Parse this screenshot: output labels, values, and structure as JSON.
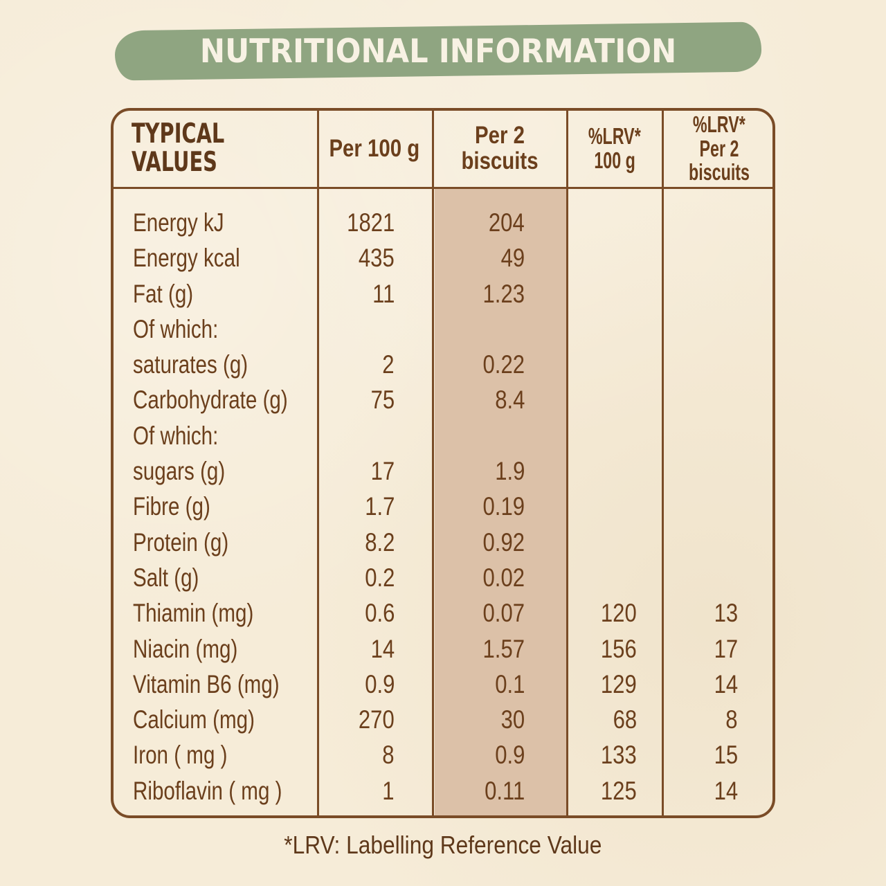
{
  "title": "NUTRITIONAL INFORMATION",
  "table": {
    "headers": {
      "typical_line1": "TYPICAL",
      "typical_line2": "VALUES",
      "per100": "Per 100 g",
      "per2": "Per 2 biscuits",
      "lrv100_line1": "%LRV*",
      "lrv100_line2": "100 g",
      "lrv2_line1": "%LRV*",
      "lrv2_line2": "Per 2 biscuits"
    },
    "rows": [
      {
        "label": "Energy kJ",
        "per100": "1821",
        "per2": "204",
        "lrv100": "",
        "lrv2": ""
      },
      {
        "label": "Energy kcal",
        "per100": "435",
        "per2": "49",
        "lrv100": "",
        "lrv2": ""
      },
      {
        "label": "Fat (g)",
        "per100": "11",
        "per2": "1.23",
        "lrv100": "",
        "lrv2": ""
      },
      {
        "label": "Of which:",
        "per100": "",
        "per2": "",
        "lrv100": "",
        "lrv2": ""
      },
      {
        "label": "saturates (g)",
        "per100": "2",
        "per2": "0.22",
        "lrv100": "",
        "lrv2": ""
      },
      {
        "label": "Carbohydrate (g)",
        "per100": "75",
        "per2": "8.4",
        "lrv100": "",
        "lrv2": ""
      },
      {
        "label": "Of which:",
        "per100": "",
        "per2": "",
        "lrv100": "",
        "lrv2": ""
      },
      {
        "label": "sugars (g)",
        "per100": "17",
        "per2": "1.9",
        "lrv100": "",
        "lrv2": ""
      },
      {
        "label": "Fibre (g)",
        "per100": "1.7",
        "per2": "0.19",
        "lrv100": "",
        "lrv2": ""
      },
      {
        "label": "Protein (g)",
        "per100": "8.2",
        "per2": "0.92",
        "lrv100": "",
        "lrv2": ""
      },
      {
        "label": "Salt (g)",
        "per100": "0.2",
        "per2": "0.02",
        "lrv100": "",
        "lrv2": ""
      },
      {
        "label": "Thiamin (mg)",
        "per100": "0.6",
        "per2": "0.07",
        "lrv100": "120",
        "lrv2": "13"
      },
      {
        "label": "Niacin (mg)",
        "per100": "14",
        "per2": "1.57",
        "lrv100": "156",
        "lrv2": "17"
      },
      {
        "label": "Vitamin B6 (mg)",
        "per100": "0.9",
        "per2": "0.1",
        "lrv100": "129",
        "lrv2": "14"
      },
      {
        "label": "Calcium (mg)",
        "per100": "270",
        "per2": "30",
        "lrv100": "68",
        "lrv2": "8"
      },
      {
        "label": "Iron ( mg )",
        "per100": "8",
        "per2": "0.9",
        "lrv100": "133",
        "lrv2": "15"
      },
      {
        "label": "Riboflavin ( mg )",
        "per100": "1",
        "per2": "0.11",
        "lrv100": "125",
        "lrv2": "14"
      }
    ]
  },
  "footnote": "*LRV: Labelling Reference Value",
  "colors": {
    "background": "#f6ecd8",
    "banner": "#8fa581",
    "banner_text": "#f8f2e4",
    "text": "#6b3f1c",
    "border": "#7a4c27",
    "shaded_column": "#dcc1a8"
  }
}
